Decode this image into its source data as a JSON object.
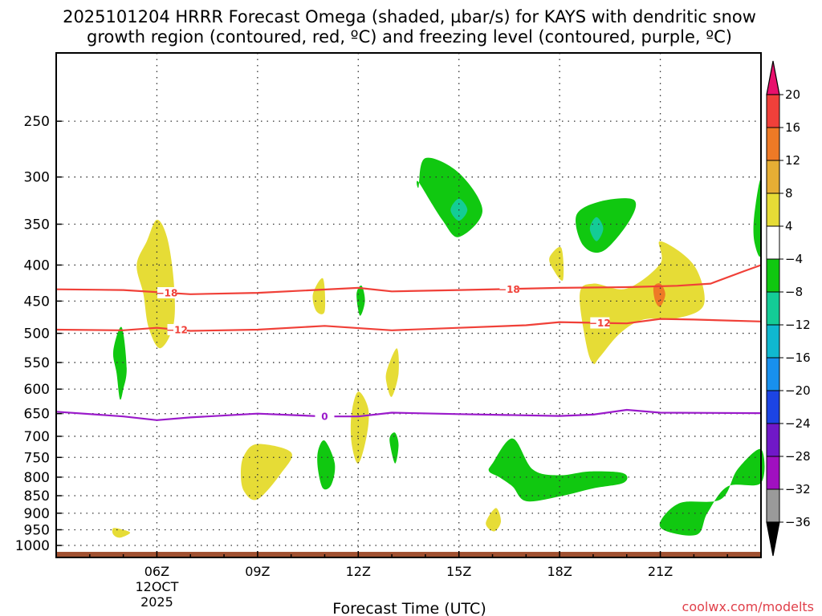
{
  "chart_data": {
    "type": "heatmap",
    "title_line1": "2025101204 HRRR Forecast Omega (shaded, µbar/s) for KAYS with dendritic snow",
    "title_line2": "growth region (contoured, red, ºC) and freezing level (contoured, purple, ºC)",
    "xlabel": "Forecast Time (UTC)",
    "ylabel": "",
    "x_range_hours_utc": [
      3,
      24
    ],
    "x_ticks": [
      {
        "hour": 6,
        "label": "06Z"
      },
      {
        "hour": 9,
        "label": "09Z"
      },
      {
        "hour": 12,
        "label": "12Z"
      },
      {
        "hour": 15,
        "label": "15Z"
      },
      {
        "hour": 18,
        "label": "18Z"
      },
      {
        "hour": 21,
        "label": "21Z"
      }
    ],
    "x_sublabel": [
      "12OCT",
      "2025"
    ],
    "y_axis_scale": "log-pressure (hPa, inverted)",
    "y_ticks": [
      250,
      300,
      350,
      400,
      450,
      500,
      550,
      600,
      650,
      700,
      750,
      800,
      850,
      900,
      950,
      1000
    ],
    "grid": "dotted",
    "credit": "coolwx.com/modelts",
    "colorbar": {
      "labels": [
        "20",
        "16",
        "12",
        "8",
        "4",
        "−4",
        "−8",
        "−12",
        "−16",
        "−20",
        "−24",
        "−28",
        "−32",
        "−36"
      ],
      "colors": [
        "#e8106c",
        "#f0403a",
        "#ee7a26",
        "#e6ae34",
        "#e6dc36",
        "#ffffff",
        "#10c810",
        "#14cc96",
        "#10b8d0",
        "#1890ee",
        "#1c44e4",
        "#7018c8",
        "#a010c0",
        "#9a9a9a",
        "#000000"
      ]
    },
    "ground_color": "#a05030",
    "series": [
      {
        "name": "-18 °C isotherm",
        "color": "#f04038",
        "label": "−18",
        "points": [
          [
            3,
            433
          ],
          [
            5,
            434
          ],
          [
            7,
            440
          ],
          [
            9,
            438
          ],
          [
            12,
            431
          ],
          [
            13,
            436
          ],
          [
            15,
            434
          ],
          [
            18,
            431
          ],
          [
            20,
            430
          ],
          [
            21.5,
            428
          ],
          [
            22.5,
            425
          ],
          [
            23.5,
            408
          ],
          [
            24,
            400
          ]
        ]
      },
      {
        "name": "-12 °C isotherm",
        "color": "#f04038",
        "label": "−12",
        "points": [
          [
            3,
            494
          ],
          [
            5,
            495
          ],
          [
            6,
            491
          ],
          [
            7,
            496
          ],
          [
            9,
            494
          ],
          [
            11,
            488
          ],
          [
            13,
            495
          ],
          [
            15,
            491
          ],
          [
            17,
            487
          ],
          [
            18,
            482
          ],
          [
            20,
            484
          ],
          [
            21,
            477
          ],
          [
            22,
            478
          ],
          [
            24,
            481
          ]
        ]
      },
      {
        "name": "0 °C freezing level",
        "color": "#9a1aca",
        "label": "0",
        "points": [
          [
            3,
            646
          ],
          [
            5,
            656
          ],
          [
            6,
            664
          ],
          [
            7,
            658
          ],
          [
            9,
            650
          ],
          [
            11,
            656
          ],
          [
            12,
            656
          ],
          [
            13,
            648
          ],
          [
            15,
            651
          ],
          [
            18,
            655
          ],
          [
            19,
            652
          ],
          [
            20,
            642
          ],
          [
            21,
            648
          ],
          [
            24,
            649
          ]
        ]
      }
    ],
    "regions": [
      {
        "value": "4 to 8",
        "color": "#e6dc36",
        "shapes": [
          [
            [
              5.4,
              400
            ],
            [
              5.7,
              370
            ],
            [
              6,
              345
            ],
            [
              6.3,
              365
            ],
            [
              6.5,
              420
            ],
            [
              6.5,
              485
            ],
            [
              6.1,
              525
            ],
            [
              5.75,
              490
            ],
            [
              5.6,
              440
            ]
          ],
          [
            [
              8.6,
              745
            ],
            [
              9,
              718
            ],
            [
              10,
              738
            ],
            [
              9.7,
              790
            ],
            [
              9,
              860
            ],
            [
              8.6,
              838
            ],
            [
              8.5,
              790
            ]
          ],
          [
            [
              10.65,
              440
            ],
            [
              10.95,
              418
            ],
            [
              11.0,
              465
            ],
            [
              10.75,
              465
            ]
          ],
          [
            [
              12,
              605
            ],
            [
              12.3,
              640
            ],
            [
              12.25,
              700
            ],
            [
              12,
              765
            ],
            [
              11.8,
              715
            ],
            [
              11.8,
              650
            ]
          ],
          [
            [
              12.85,
              565
            ],
            [
              13.15,
              525
            ],
            [
              13.2,
              570
            ],
            [
              13.0,
              615
            ],
            [
              12.85,
              590
            ]
          ],
          [
            [
              15.8,
              930
            ],
            [
              16.1,
              885
            ],
            [
              16.25,
              925
            ],
            [
              16.05,
              955
            ]
          ],
          [
            [
              17.7,
              390
            ],
            [
              18.05,
              378
            ],
            [
              18.1,
              420
            ],
            [
              17.8,
              405
            ]
          ],
          [
            [
              18.6,
              440
            ],
            [
              19,
              425
            ],
            [
              20,
              432
            ],
            [
              21,
              398
            ],
            [
              21,
              370
            ],
            [
              22,
              400
            ],
            [
              22.3,
              455
            ],
            [
              21.5,
              476
            ],
            [
              20.5,
              478
            ],
            [
              19.8,
              500
            ],
            [
              19.2,
              540
            ],
            [
              19,
              552
            ],
            [
              18.8,
              520
            ]
          ],
          [
            [
              4.7,
              945
            ],
            [
              5.0,
              950
            ],
            [
              5.2,
              960
            ],
            [
              4.9,
              975
            ],
            [
              4.7,
              965
            ]
          ]
        ]
      },
      {
        "value": "12 to 16",
        "color": "#ee7a26",
        "shapes": [
          [
            [
              20.8,
              430
            ],
            [
              21,
              425
            ],
            [
              21.15,
              440
            ],
            [
              21.0,
              458
            ],
            [
              20.85,
              450
            ]
          ]
        ]
      },
      {
        "value": "-4 to -8",
        "color": "#10c810",
        "shapes": [
          [
            [
              4.7,
              530
            ],
            [
              4.95,
              490
            ],
            [
              5.1,
              560
            ],
            [
              5.0,
              600
            ],
            [
              4.9,
              620
            ],
            [
              4.8,
              570
            ]
          ],
          [
            [
              13.8,
              310
            ],
            [
              14,
              282
            ],
            [
              15,
              296
            ],
            [
              15.7,
              335
            ],
            [
              15,
              365
            ],
            [
              14.5,
              345
            ],
            [
              13.8,
              305
            ]
          ],
          [
            [
              10.8,
              735
            ],
            [
              11,
              710
            ],
            [
              11.3,
              765
            ],
            [
              11.2,
              820
            ],
            [
              10.95,
              830
            ],
            [
              10.8,
              780
            ]
          ],
          [
            [
              11.95,
              440
            ],
            [
              12.1,
              428
            ],
            [
              12.2,
              450
            ],
            [
              12.05,
              472
            ]
          ],
          [
            [
              12.95,
              700
            ],
            [
              13.1,
              692
            ],
            [
              13.2,
              720
            ],
            [
              13.1,
              765
            ],
            [
              12.95,
              720
            ]
          ],
          [
            [
              16,
              765
            ],
            [
              16.6,
              705
            ],
            [
              17.2,
              780
            ],
            [
              18,
              795
            ],
            [
              18.9,
              785
            ],
            [
              19.9,
              790
            ],
            [
              19.9,
              815
            ],
            [
              19,
              830
            ],
            [
              18,
              852
            ],
            [
              17,
              865
            ],
            [
              16.6,
              825
            ],
            [
              16.2,
              800
            ],
            [
              15.9,
              785
            ]
          ],
          [
            [
              18.5,
              340
            ],
            [
              19.2,
              325
            ],
            [
              20.2,
              323
            ],
            [
              20.1,
              345
            ],
            [
              19.3,
              382
            ],
            [
              18.7,
              375
            ]
          ],
          [
            [
              23.8,
              340
            ],
            [
              24,
              303
            ],
            [
              24,
              385
            ],
            [
              23.8,
              370
            ]
          ],
          [
            [
              22.8,
              860
            ],
            [
              23.3,
              780
            ],
            [
              24,
              730
            ],
            [
              24,
              815
            ],
            [
              23,
              825
            ],
            [
              22.4,
              900
            ],
            [
              22.1,
              965
            ],
            [
              21.2,
              955
            ],
            [
              21,
              925
            ],
            [
              21.6,
              870
            ]
          ]
        ]
      },
      {
        "value": "-8 to -12",
        "color": "#14cc96",
        "shapes": [
          [
            [
              14.75,
              334
            ],
            [
              15,
              322
            ],
            [
              15.25,
              334
            ],
            [
              15,
              346
            ]
          ],
          [
            [
              18.9,
              355
            ],
            [
              19.1,
              342
            ],
            [
              19.3,
              355
            ],
            [
              19.1,
              370
            ]
          ]
        ]
      }
    ]
  }
}
